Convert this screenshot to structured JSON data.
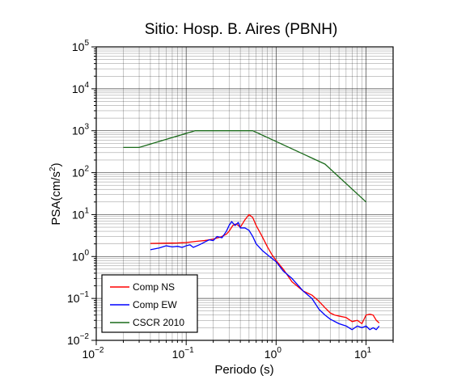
{
  "chart_data": {
    "type": "line",
    "title": "Sitio: Hosp. B. Aires (PBNH)",
    "xlabel": "Periodo (s)",
    "ylabel_parts": [
      "PSA(cm/s",
      "2",
      ")"
    ],
    "xscale": "log",
    "yscale": "log",
    "xlim": [
      0.01,
      20
    ],
    "ylim": [
      0.01,
      100000
    ],
    "grid": true,
    "legend_position": "bottom-left",
    "x_tick_labels": [
      {
        "base": "10",
        "exp": "−2",
        "value": 0.01
      },
      {
        "base": "10",
        "exp": "−1",
        "value": 0.1
      },
      {
        "base": "10",
        "exp": "0",
        "value": 1
      },
      {
        "base": "10",
        "exp": "1",
        "value": 10
      }
    ],
    "y_tick_labels": [
      {
        "base": "10",
        "exp": "−2",
        "value": 0.01
      },
      {
        "base": "10",
        "exp": "−1",
        "value": 0.1
      },
      {
        "base": "10",
        "exp": "0",
        "value": 1
      },
      {
        "base": "10",
        "exp": "1",
        "value": 10
      },
      {
        "base": "10",
        "exp": "2",
        "value": 100
      },
      {
        "base": "10",
        "exp": "3",
        "value": 1000
      },
      {
        "base": "10",
        "exp": "4",
        "value": 10000
      },
      {
        "base": "10",
        "exp": "5",
        "value": 100000
      }
    ],
    "series": [
      {
        "name": "Comp NS",
        "color": "#ff0000",
        "x": [
          0.04,
          0.06,
          0.08,
          0.1,
          0.13,
          0.16,
          0.2,
          0.24,
          0.28,
          0.3,
          0.33,
          0.36,
          0.4,
          0.45,
          0.5,
          0.55,
          0.6,
          0.7,
          0.8,
          0.9,
          1.0,
          1.2,
          1.5,
          2.0,
          2.5,
          3.0,
          3.5,
          4.0,
          4.5,
          5.0,
          6.0,
          7.0,
          8.0,
          9.0,
          10.0,
          11.0,
          12.0,
          13.0,
          14.0
        ],
        "y": [
          2.05,
          2.08,
          2.1,
          2.15,
          2.3,
          2.4,
          2.6,
          2.9,
          3.4,
          4.0,
          5.5,
          6.0,
          5.0,
          7.5,
          10.0,
          8.5,
          5.5,
          3.0,
          1.7,
          1.1,
          0.8,
          0.5,
          0.25,
          0.15,
          0.12,
          0.085,
          0.06,
          0.045,
          0.04,
          0.038,
          0.035,
          0.028,
          0.03,
          0.025,
          0.04,
          0.042,
          0.04,
          0.03,
          0.026
        ]
      },
      {
        "name": "Comp EW",
        "color": "#0000ff",
        "x": [
          0.04,
          0.05,
          0.06,
          0.07,
          0.08,
          0.09,
          0.1,
          0.11,
          0.12,
          0.14,
          0.16,
          0.18,
          0.2,
          0.22,
          0.25,
          0.28,
          0.3,
          0.32,
          0.35,
          0.38,
          0.4,
          0.45,
          0.5,
          0.55,
          0.6,
          0.7,
          0.8,
          1.0,
          1.2,
          1.5,
          2.0,
          2.5,
          3.0,
          3.5,
          4.0,
          5.0,
          6.0,
          7.0,
          8.0,
          9.0,
          10.0,
          11.0,
          12.0,
          13.0,
          14.0
        ],
        "y": [
          1.45,
          1.6,
          1.8,
          1.7,
          1.75,
          1.65,
          1.8,
          1.9,
          1.65,
          1.9,
          2.2,
          2.5,
          2.4,
          3.0,
          2.8,
          4.0,
          5.5,
          6.8,
          5.5,
          6.5,
          4.8,
          4.8,
          4.2,
          3.0,
          2.0,
          1.4,
          1.1,
          0.75,
          0.45,
          0.3,
          0.15,
          0.1,
          0.055,
          0.04,
          0.032,
          0.025,
          0.022,
          0.018,
          0.022,
          0.02,
          0.022,
          0.018,
          0.02,
          0.018,
          0.022
        ]
      },
      {
        "name": "CSCR 2010",
        "color": "#1a6a1a",
        "x": [
          0.02,
          0.03,
          0.125,
          0.55,
          3.5,
          10.0
        ],
        "y": [
          400,
          400,
          1000,
          1000,
          160,
          20
        ]
      }
    ]
  }
}
